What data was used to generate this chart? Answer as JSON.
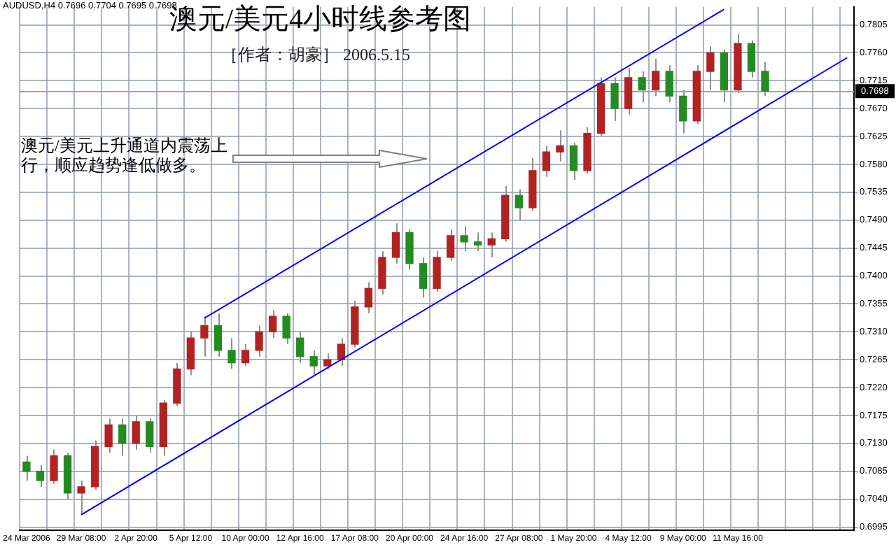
{
  "chart_data": {
    "type": "candlestick",
    "title": "澳元/美元4小时线参考图",
    "subtitle": "［作者：胡豪］  2006.5.15",
    "annotations": [
      "AUDUSD,H4  0.7696 0.7704 0.7695 0.7698",
      "澳元/美元上升通道内震荡上行，顺应趋势逢低做多。"
    ],
    "categories": [
      "24 Mar 2006",
      null,
      null,
      null,
      "29 Mar 08:00",
      null,
      null,
      null,
      "2 Apr 20:00",
      null,
      null,
      null,
      "5 Apr 12:00",
      null,
      null,
      null,
      "10 Apr 00:00",
      null,
      null,
      null,
      "12 Apr 16:00",
      null,
      null,
      null,
      "17 Apr 08:00",
      null,
      null,
      null,
      "20 Apr 00:00",
      null,
      null,
      null,
      "24 Apr 16:00",
      null,
      null,
      null,
      "27 Apr 08:00",
      null,
      null,
      null,
      "1 May 20:00",
      null,
      null,
      null,
      "4 May 12:00",
      null,
      null,
      null,
      "9 May 00:00",
      null,
      null,
      null,
      "11 May 16:00",
      null,
      null,
      null,
      null,
      null,
      null,
      null,
      null
    ],
    "ohlc": [
      [
        0.71,
        0.711,
        0.707,
        0.7085
      ],
      [
        0.7085,
        0.7095,
        0.706,
        0.707
      ],
      [
        0.707,
        0.712,
        0.7065,
        0.711
      ],
      [
        0.711,
        0.7115,
        0.704,
        0.705
      ],
      [
        0.705,
        0.707,
        0.7015,
        0.706
      ],
      [
        0.706,
        0.7135,
        0.7055,
        0.7125
      ],
      [
        0.7125,
        0.717,
        0.7115,
        0.716
      ],
      [
        0.716,
        0.717,
        0.711,
        0.713
      ],
      [
        0.713,
        0.7175,
        0.712,
        0.7165
      ],
      [
        0.7165,
        0.717,
        0.7115,
        0.7125
      ],
      [
        0.7125,
        0.72,
        0.711,
        0.7195
      ],
      [
        0.7195,
        0.726,
        0.719,
        0.725
      ],
      [
        0.725,
        0.731,
        0.724,
        0.73
      ],
      [
        0.73,
        0.7335,
        0.727,
        0.732
      ],
      [
        0.732,
        0.734,
        0.727,
        0.728
      ],
      [
        0.728,
        0.73,
        0.725,
        0.726
      ],
      [
        0.726,
        0.729,
        0.7255,
        0.728
      ],
      [
        0.728,
        0.732,
        0.727,
        0.731
      ],
      [
        0.731,
        0.7345,
        0.73,
        0.7335
      ],
      [
        0.7335,
        0.734,
        0.729,
        0.73
      ],
      [
        0.73,
        0.731,
        0.726,
        0.727
      ],
      [
        0.727,
        0.728,
        0.724,
        0.7255
      ],
      [
        0.7255,
        0.7275,
        0.725,
        0.7265
      ],
      [
        0.7265,
        0.73,
        0.7255,
        0.729
      ],
      [
        0.729,
        0.736,
        0.7285,
        0.735
      ],
      [
        0.735,
        0.739,
        0.734,
        0.738
      ],
      [
        0.738,
        0.744,
        0.737,
        0.743
      ],
      [
        0.743,
        0.7485,
        0.742,
        0.747
      ],
      [
        0.747,
        0.7475,
        0.741,
        0.742
      ],
      [
        0.742,
        0.743,
        0.7365,
        0.738
      ],
      [
        0.738,
        0.744,
        0.7375,
        0.743
      ],
      [
        0.743,
        0.7475,
        0.7425,
        0.7465
      ],
      [
        0.7465,
        0.748,
        0.744,
        0.7455
      ],
      [
        0.7455,
        0.747,
        0.744,
        0.745
      ],
      [
        0.745,
        0.747,
        0.743,
        0.746
      ],
      [
        0.746,
        0.7545,
        0.7455,
        0.753
      ],
      [
        0.753,
        0.754,
        0.749,
        0.751
      ],
      [
        0.751,
        0.759,
        0.7505,
        0.757
      ],
      [
        0.757,
        0.761,
        0.756,
        0.76
      ],
      [
        0.76,
        0.7635,
        0.7585,
        0.761
      ],
      [
        0.761,
        0.7615,
        0.7555,
        0.757
      ],
      [
        0.757,
        0.764,
        0.7565,
        0.763
      ],
      [
        0.763,
        0.772,
        0.7625,
        0.771
      ],
      [
        0.771,
        0.772,
        0.765,
        0.767
      ],
      [
        0.767,
        0.7735,
        0.766,
        0.772
      ],
      [
        0.772,
        0.773,
        0.768,
        0.77
      ],
      [
        0.77,
        0.775,
        0.769,
        0.773
      ],
      [
        0.773,
        0.774,
        0.768,
        0.769
      ],
      [
        0.769,
        0.77,
        0.763,
        0.765
      ],
      [
        0.765,
        0.774,
        0.7645,
        0.773
      ],
      [
        0.773,
        0.777,
        0.77,
        0.776
      ],
      [
        0.776,
        0.7765,
        0.768,
        0.77
      ],
      [
        0.77,
        0.779,
        0.7695,
        0.7775
      ],
      [
        0.7775,
        0.778,
        0.772,
        0.773
      ],
      [
        0.773,
        0.7745,
        0.769,
        0.7698
      ],
      null,
      null,
      null,
      null,
      null,
      null
    ],
    "colors": [
      "#228b22",
      "#228b22",
      "#b22222",
      "#228b22",
      "#b22222",
      "#b22222",
      "#b22222",
      "#228b22",
      "#b22222",
      "#228b22",
      "#b22222",
      "#b22222",
      "#b22222",
      "#b22222",
      "#228b22",
      "#228b22",
      "#b22222",
      "#b22222",
      "#b22222",
      "#228b22",
      "#228b22",
      "#228b22",
      "#b22222",
      "#b22222",
      "#b22222",
      "#b22222",
      "#b22222",
      "#b22222",
      "#228b22",
      "#228b22",
      "#b22222",
      "#b22222",
      "#228b22",
      "#228b22",
      "#b22222",
      "#b22222",
      "#228b22",
      "#b22222",
      "#b22222",
      "#b22222",
      "#228b22",
      "#b22222",
      "#b22222",
      "#228b22",
      "#b22222",
      "#228b22",
      "#b22222",
      "#228b22",
      "#228b22",
      "#b22222",
      "#b22222",
      "#228b22",
      "#b22222",
      "#228b22",
      "#228b22",
      null,
      null,
      null,
      null,
      null,
      null
    ],
    "series": [
      {
        "type": "line",
        "color": "#0000ff",
        "values": [
          null,
          null,
          null,
          null,
          null,
          null,
          null,
          null,
          null,
          null,
          null,
          null,
          null,
          0.7332,
          null,
          null,
          null,
          null,
          null,
          null,
          null,
          null,
          null,
          null,
          null,
          null,
          null,
          null,
          null,
          null,
          null,
          null,
          null,
          null,
          null,
          null,
          null,
          null,
          null,
          null,
          null,
          null,
          null,
          null,
          null,
          null,
          null,
          null,
          null,
          null,
          null,
          0.783,
          null,
          null,
          null,
          null,
          null,
          null,
          null,
          null,
          null
        ]
      },
      {
        "type": "line",
        "color": "#0000ff",
        "values": [
          null,
          null,
          null,
          null,
          0.7015,
          null,
          null,
          null,
          null,
          null,
          null,
          null,
          null,
          null,
          null,
          null,
          null,
          null,
          null,
          null,
          null,
          null,
          null,
          null,
          null,
          null,
          null,
          null,
          null,
          null,
          null,
          null,
          null,
          null,
          null,
          null,
          null,
          null,
          null,
          null,
          null,
          null,
          null,
          null,
          null,
          null,
          null,
          null,
          null,
          null,
          null,
          null,
          null,
          null,
          null,
          null,
          null,
          null,
          null,
          null,
          0.7752
        ]
      }
    ],
    "ylim": [
      0.699,
      0.7834
    ],
    "yticks": [
      0.6995,
      {
        "value": 0.704,
        "label": "0.7040"
      },
      0.7085,
      {
        "value": 0.713,
        "label": "0.7130"
      },
      0.7175,
      {
        "value": 0.722,
        "label": "0.7220"
      },
      0.7265,
      {
        "value": 0.731,
        "label": "0.7310"
      },
      0.7355,
      {
        "value": 0.74,
        "label": "0.7400"
      },
      0.7445,
      {
        "value": 0.749,
        "label": "0.7490"
      },
      0.7535,
      {
        "value": 0.758,
        "label": "0.7580"
      },
      0.7625,
      {
        "value": 0.767,
        "label": "0.7670"
      },
      0.7715,
      {
        "value": 0.776,
        "label": "0.7760"
      },
      0.7805
    ],
    "ref_lines": [
      {
        "axis": "y",
        "value": 0.7698,
        "label": "0.7698",
        "color": "#a0a0b4"
      }
    ],
    "grid": true
  }
}
